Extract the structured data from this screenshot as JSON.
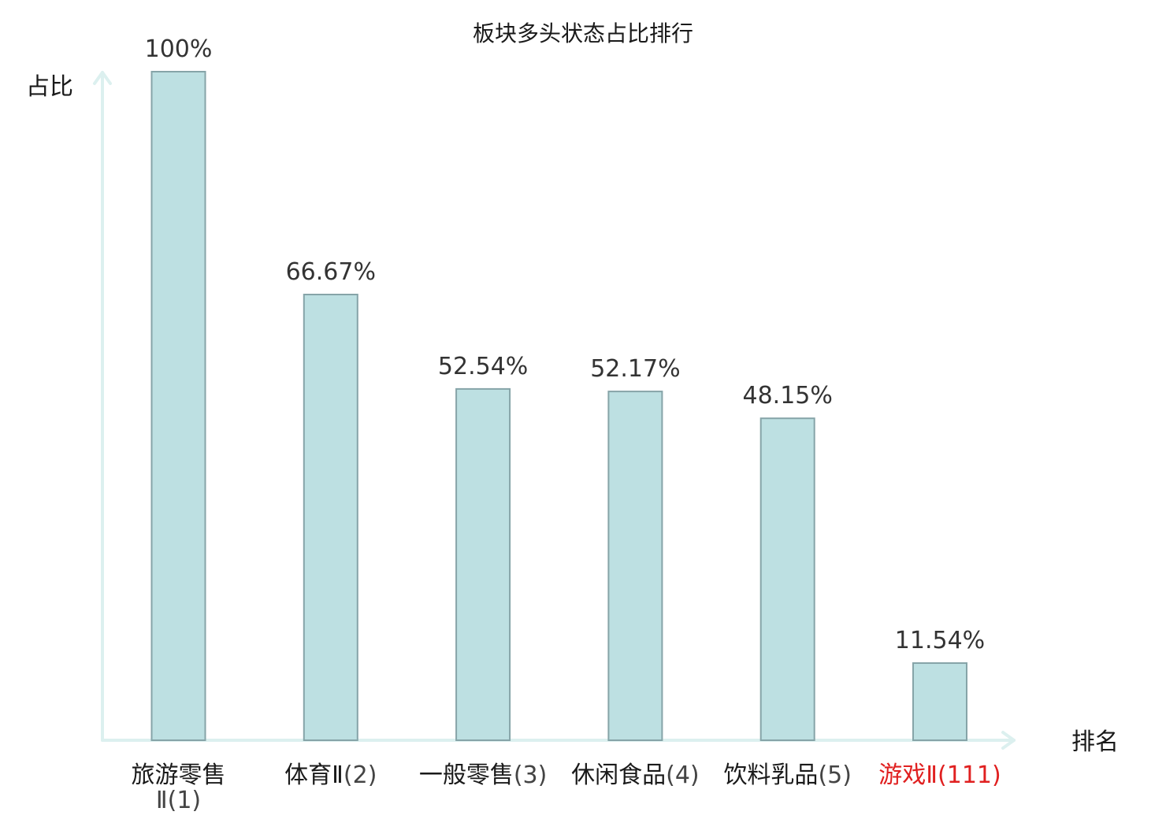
{
  "chart_data": {
    "type": "bar",
    "title": "板块多头状态占比排行",
    "ylabel": "占比",
    "xlabel": "排名",
    "ylim": [
      0,
      100
    ],
    "grid": false,
    "legend": "none",
    "categories": [
      {
        "name": "旅游零售Ⅱ",
        "rank": "(1)",
        "line1": "旅游零售",
        "line2": "Ⅱ(1)",
        "highlight": false
      },
      {
        "name": "体育Ⅱ",
        "rank": "(2)",
        "highlight": false
      },
      {
        "name": "一般零售",
        "rank": "(3)",
        "highlight": false
      },
      {
        "name": "休闲食品",
        "rank": "(4)",
        "highlight": false
      },
      {
        "name": "饮料乳品",
        "rank": "(5)",
        "highlight": false
      },
      {
        "name": "游戏Ⅱ",
        "rank": "(111)",
        "highlight": true
      }
    ],
    "values": [
      100,
      66.67,
      52.54,
      52.17,
      48.15,
      11.54
    ],
    "value_labels": [
      "100%",
      "66.67%",
      "52.54%",
      "52.17%",
      "48.15%",
      "11.54%"
    ],
    "colors": {
      "bar_fill": "#bde0e2",
      "bar_stroke": "#86a4a8",
      "axis": "#dcf0ef",
      "highlight_text": "#e02020"
    }
  }
}
